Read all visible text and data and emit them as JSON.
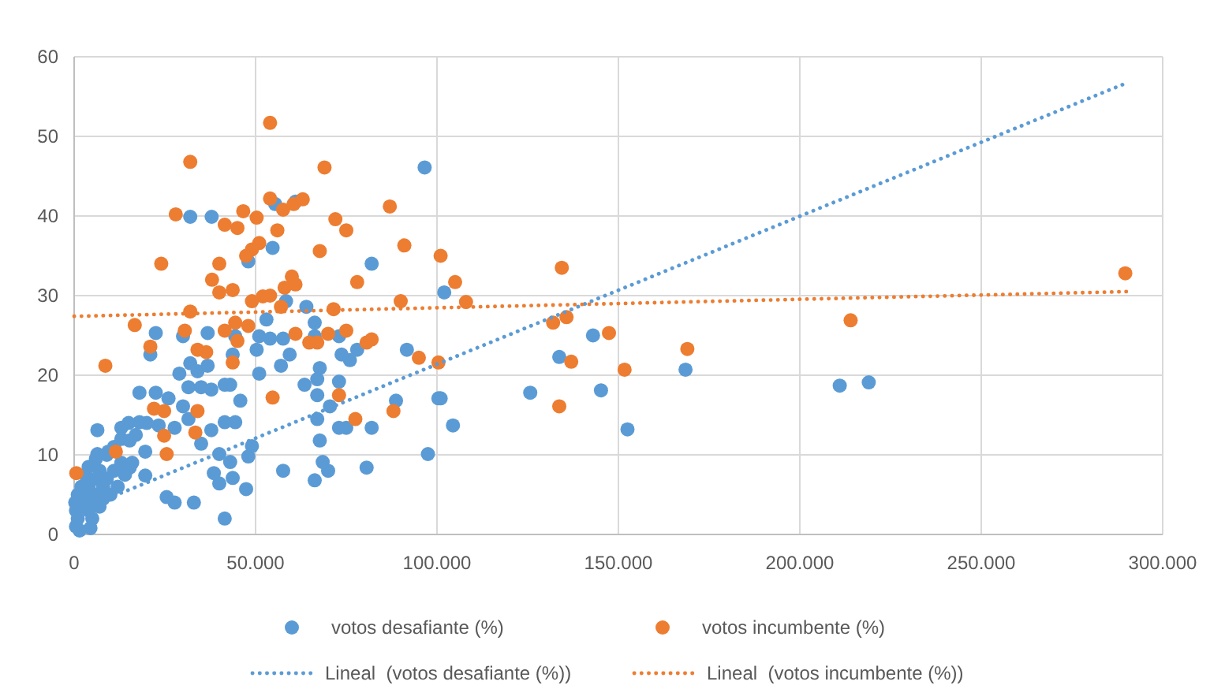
{
  "chart_data": {
    "type": "scatter",
    "xlim": [
      0,
      300000
    ],
    "ylim": [
      0,
      60
    ],
    "xticks": [
      0,
      {
        "value": 50000,
        "label": "50.000"
      },
      {
        "value": 100000,
        "label": "100.000"
      },
      {
        "value": 150000,
        "label": "150.000"
      },
      {
        "value": 200000,
        "label": "200.000"
      },
      {
        "value": 250000,
        "label": "250.000"
      },
      {
        "value": 300000,
        "label": "300.000"
      }
    ],
    "yticks": [
      0,
      10,
      20,
      30,
      40,
      50,
      60
    ],
    "grid": true,
    "legend": "bottom",
    "series": [
      {
        "name": "votos desafiante (%)",
        "color": "#5b9bd5",
        "marker": "circle",
        "x": [
          96600,
          32000,
          37900,
          55400,
          61000,
          54700,
          48000,
          82000,
          102000,
          6400,
          6400,
          9400,
          13000,
          15300,
          15300,
          18000,
          18000,
          19600,
          19600,
          21000,
          22500,
          22500,
          23300,
          25500,
          27700,
          26000,
          27700,
          29000,
          30000,
          31500,
          32000,
          30000,
          31500,
          34000,
          35000,
          33000,
          35000,
          36800,
          36800,
          37800,
          37800,
          38500,
          40000,
          40000,
          41500,
          41500,
          43000,
          43000,
          43700,
          44400,
          45800,
          47400,
          48000,
          49000,
          41500,
          43700,
          44400,
          50300,
          51000,
          51000,
          53000,
          54000,
          57600,
          57000,
          58400,
          59400,
          57600,
          63500,
          64000,
          66300,
          66300,
          67000,
          67000,
          67700,
          67000,
          67700,
          68500,
          70000,
          66300,
          70500,
          73000,
          73000,
          73000,
          75000,
          73700,
          76000,
          78000,
          82000,
          80600,
          88700,
          91700,
          97500,
          100400,
          104400,
          101000,
          125700,
          133700,
          143000,
          145200,
          152500,
          168500,
          211000,
          219000,
          500,
          1000,
          2000,
          3000,
          4000,
          4000,
          5000,
          5000,
          6000,
          6000,
          7000,
          8000,
          8000,
          9000,
          10000,
          11000,
          12000,
          13000,
          14000,
          1000,
          500,
          2000,
          3000,
          4000,
          1500,
          300,
          6000,
          7000,
          9000,
          11000,
          13000,
          16000,
          17000,
          15000,
          20000,
          4500
        ],
        "values": [
          46.1,
          39.9,
          39.9,
          41.5,
          41.8,
          36,
          34.3,
          34,
          30.4,
          13.1,
          10.1,
          10.4,
          13.4,
          11.8,
          8.4,
          17.8,
          14.1,
          10.4,
          7.4,
          22.6,
          25.3,
          17.8,
          13.7,
          4.7,
          4,
          17.1,
          13.4,
          20.2,
          24.9,
          18.5,
          21.5,
          16.1,
          14.5,
          20.5,
          18.5,
          4,
          11.4,
          21.2,
          25.3,
          18.2,
          13.1,
          7.7,
          6.4,
          10.1,
          14.1,
          18.8,
          18.8,
          9.1,
          22.6,
          14.1,
          16.8,
          5.7,
          9.8,
          11.1,
          2,
          7.1,
          24.9,
          23.2,
          20.2,
          24.9,
          27,
          24.6,
          24.6,
          21.2,
          29.3,
          22.6,
          8,
          18.8,
          28.6,
          26.6,
          24.9,
          19.5,
          17.5,
          20.9,
          14.5,
          11.8,
          9.1,
          8,
          6.8,
          16.1,
          24.9,
          19.2,
          13.4,
          13.4,
          22.6,
          21.9,
          23.2,
          13.4,
          8.4,
          16.8,
          23.2,
          10.1,
          17.1,
          13.7,
          17.1,
          17.8,
          22.3,
          25,
          18.1,
          13.2,
          20.7,
          18.7,
          19.1,
          1,
          2,
          4,
          5,
          3,
          6,
          4,
          2,
          5,
          7,
          3.5,
          6,
          4.5,
          7,
          5,
          8,
          6,
          9,
          7.5,
          5,
          3,
          6,
          7.5,
          8.5,
          0.5,
          4,
          9.5,
          8,
          10,
          11,
          12,
          9,
          12.5,
          14,
          14,
          0.8
        ]
      },
      {
        "name": "votos incumbente (%)",
        "color": "#ed7d31",
        "marker": "circle",
        "x": [
          54000,
          32000,
          69000,
          28000,
          41500,
          46600,
          50300,
          45000,
          54000,
          57600,
          60500,
          63000,
          56000,
          72000,
          75000,
          87000,
          91000,
          101000,
          105000,
          67700,
          51000,
          49000,
          47400,
          40000,
          24000,
          38000,
          60000,
          61000,
          58000,
          78000,
          43700,
          40000,
          52000,
          54000,
          8600,
          16700,
          21000,
          22000,
          24800,
          30500,
          32000,
          34000,
          36400,
          34000,
          33400,
          24800,
          11500,
          25500,
          600,
          41500,
          43700,
          45000,
          44400,
          49000,
          48000,
          54700,
          61000,
          64800,
          67000,
          70000,
          71500,
          75000,
          73000,
          77500,
          80600,
          82000,
          90000,
          88000,
          95000,
          100400,
          57000,
          108000,
          134400,
          132000,
          135700,
          137000,
          147400,
          133700,
          151700,
          169000,
          214000,
          289700
        ],
        "values": [
          51.7,
          46.8,
          46.1,
          40.2,
          38.9,
          40.6,
          39.8,
          38.5,
          42.2,
          40.8,
          41.5,
          42.1,
          38.2,
          39.6,
          38.2,
          41.2,
          36.3,
          35,
          31.7,
          35.6,
          36.6,
          35.8,
          35,
          34,
          34,
          32,
          32.4,
          31.4,
          31,
          31.7,
          30.7,
          30.4,
          29.9,
          30,
          21.2,
          26.3,
          23.6,
          15.8,
          15.5,
          25.6,
          28,
          23.2,
          22.9,
          15.5,
          12.8,
          12.4,
          10.4,
          10.1,
          7.7,
          25.6,
          21.6,
          24.3,
          26.6,
          29.3,
          26.2,
          17.2,
          25.2,
          24.1,
          24.1,
          25.2,
          28.3,
          25.6,
          17.5,
          14.5,
          24.1,
          24.5,
          29.3,
          15.5,
          22.2,
          21.6,
          28.6,
          29.2,
          33.5,
          26.6,
          27.3,
          21.7,
          25.3,
          16.1,
          20.7,
          23.3,
          26.9,
          32.8
        ]
      },
      {
        "name": "Lineal  (votos desafiante (%))",
        "type": "line",
        "color": "#5b9bd5",
        "line_style": "dotted",
        "marker": "none",
        "x": [
          0,
          290000
        ],
        "values": [
          2.8,
          56.7
        ]
      },
      {
        "name": "Lineal  (votos incumbente (%))",
        "type": "line",
        "color": "#ed7d31",
        "line_style": "dotted",
        "marker": "none",
        "x": [
          0,
          290000
        ],
        "values": [
          27.4,
          30.5
        ]
      }
    ]
  }
}
